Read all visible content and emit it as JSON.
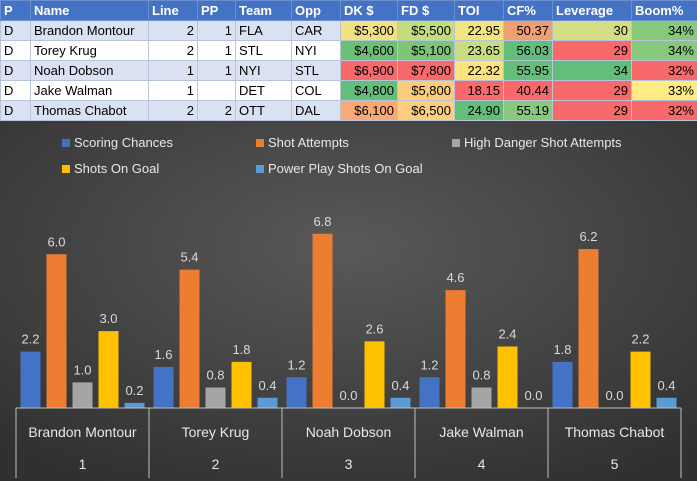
{
  "table": {
    "headers": [
      "P",
      "Name",
      "Line",
      "PP",
      "Team",
      "Opp",
      "DK $",
      "FD $",
      "TOI",
      "CF%",
      "Leverage",
      "Boom%"
    ],
    "rows": [
      [
        "D",
        "Brandon Montour",
        "2",
        "1",
        "FLA",
        "CAR",
        "$5,300",
        "$5,500",
        "22.95",
        "50.37",
        "30",
        "34%"
      ],
      [
        "D",
        "Torey Krug",
        "2",
        "1",
        "STL",
        "NYI",
        "$4,600",
        "$5,100",
        "23.65",
        "56.03",
        "29",
        "34%"
      ],
      [
        "D",
        "Noah Dobson",
        "1",
        "1",
        "NYI",
        "STL",
        "$6,900",
        "$7,800",
        "22.32",
        "55.95",
        "34",
        "32%"
      ],
      [
        "D",
        "Jake Walman",
        "1",
        "",
        "DET",
        "COL",
        "$4,800",
        "$5,800",
        "18.15",
        "40.44",
        "29",
        "33%"
      ],
      [
        "D",
        "Thomas Chabot",
        "2",
        "2",
        "OTT",
        "DAL",
        "$6,100",
        "$6,500",
        "24.90",
        "55.19",
        "29",
        "32%"
      ]
    ],
    "heat_colors": [
      [
        null,
        null,
        null,
        null,
        null,
        null,
        "#f2e182",
        "#c2dc7e",
        "#f4e47f",
        "#f0a070",
        "#d4dd84",
        "#86c97c"
      ],
      [
        null,
        null,
        null,
        null,
        null,
        null,
        "#6cbf74",
        "#7ec578",
        "#c9dd80",
        "#63be7b",
        "#f8696b",
        "#86c97c"
      ],
      [
        null,
        null,
        null,
        null,
        null,
        null,
        "#f8696b",
        "#f8696b",
        "#fde27f",
        "#65be7b",
        "#63be7b",
        "#f8696b"
      ],
      [
        null,
        null,
        null,
        null,
        null,
        null,
        "#63be7b",
        "#fbcc7c",
        "#f8696b",
        "#f8696b",
        "#f8696b",
        "#ffeb84"
      ],
      [
        null,
        null,
        null,
        null,
        null,
        null,
        "#fba877",
        "#fcce7e",
        "#63be7b",
        "#8ac87d",
        "#f8696b",
        "#f8696b"
      ]
    ]
  },
  "chart_data": {
    "type": "bar",
    "categories": [
      "Brandon Montour",
      "Torey Krug",
      "Noah Dobson",
      "Jake Walman",
      "Thomas Chabot"
    ],
    "category_numbers": [
      "1",
      "2",
      "3",
      "4",
      "5"
    ],
    "series": [
      {
        "name": "Scoring Chances",
        "color": "#4472c4",
        "values": [
          2.2,
          1.6,
          1.2,
          1.2,
          1.8
        ]
      },
      {
        "name": "Shot Attempts",
        "color": "#ed7d31",
        "values": [
          6.0,
          5.4,
          6.8,
          4.6,
          6.2
        ]
      },
      {
        "name": "High Danger Shot Attempts",
        "color": "#a5a5a5",
        "values": [
          1.0,
          0.8,
          0.0,
          0.8,
          0.0
        ]
      },
      {
        "name": "Shots On Goal",
        "color": "#ffc000",
        "values": [
          3.0,
          1.8,
          2.6,
          2.4,
          2.2
        ]
      },
      {
        "name": "Power Play Shots On Goal",
        "color": "#5b9bd5",
        "values": [
          0.2,
          0.4,
          0.4,
          0.0,
          0.4
        ]
      }
    ],
    "ylim": [
      0,
      8
    ],
    "legend": "top",
    "grid": false,
    "background": "#404040"
  }
}
